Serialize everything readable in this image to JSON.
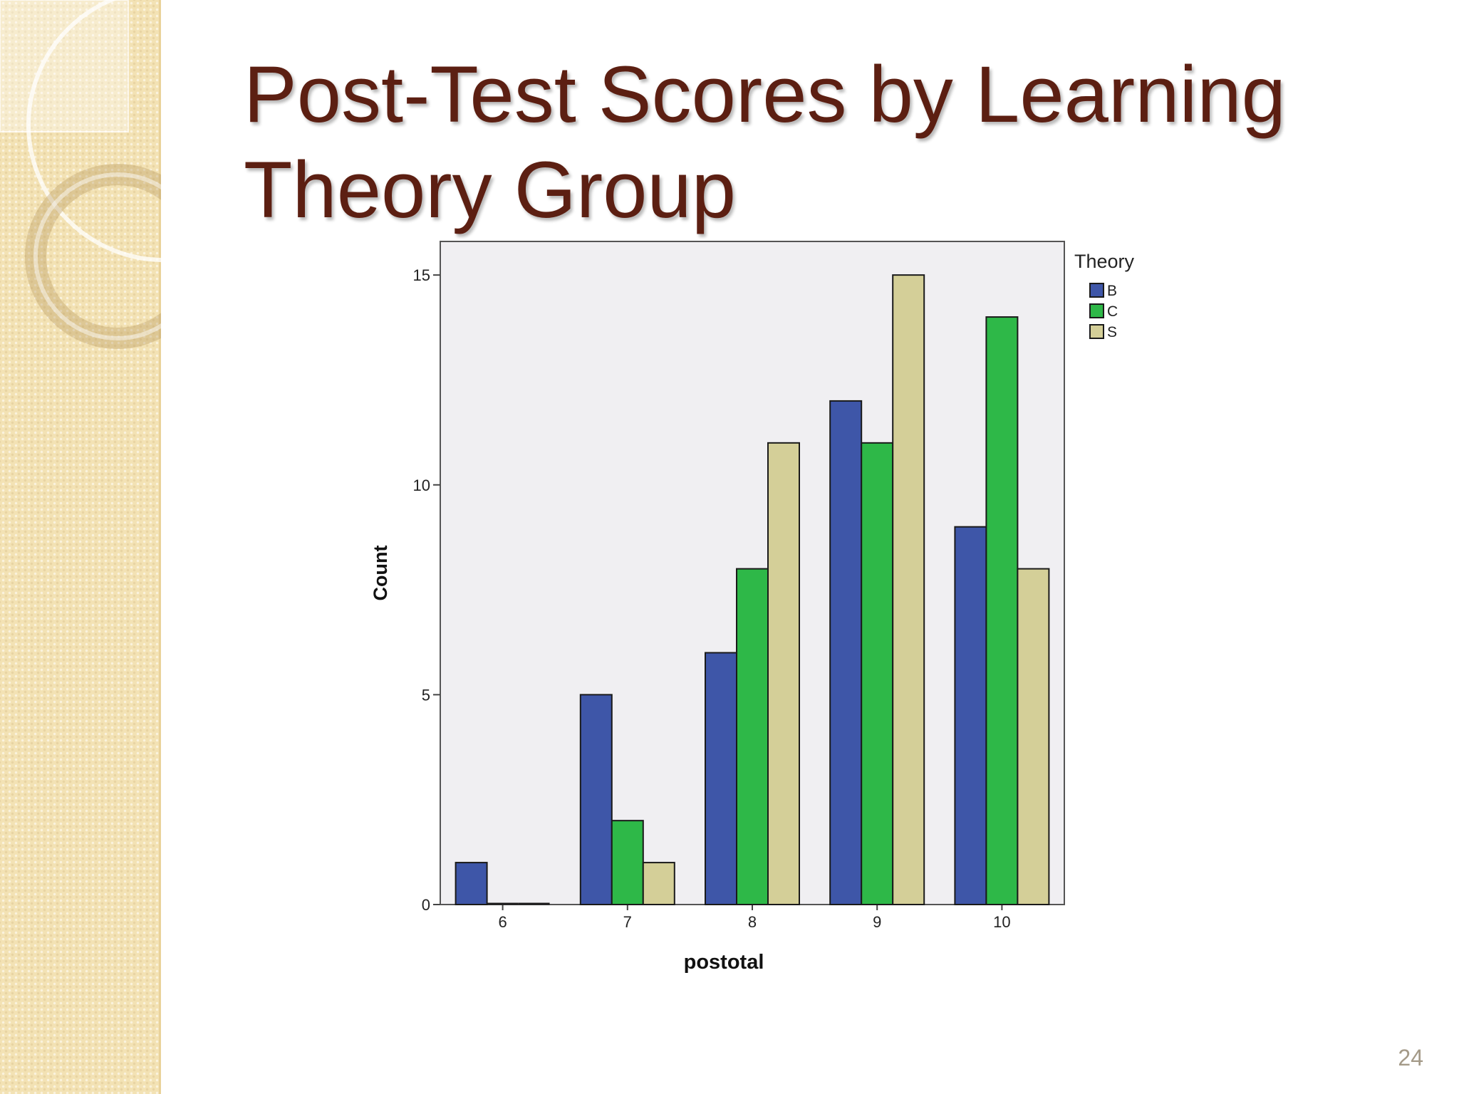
{
  "slide": {
    "title": "Post-Test Scores by Learning Theory Group",
    "page_number": "24"
  },
  "colors": {
    "title": "#5c1f12",
    "sidebar": "#f3e2b4",
    "plot_background": "#f0eff2"
  },
  "chart_data": {
    "type": "bar",
    "title": "",
    "xlabel": "postotal",
    "ylabel": "Count",
    "categories": [
      "6",
      "7",
      "8",
      "9",
      "10"
    ],
    "ylim": [
      0,
      15.8
    ],
    "yticks": [
      0,
      5,
      10,
      15
    ],
    "legend_title": "Theory",
    "legend_position": "right",
    "grid": false,
    "series": [
      {
        "name": "B",
        "color": "#3e56a8",
        "values": [
          1,
          5,
          6,
          12,
          9
        ]
      },
      {
        "name": "C",
        "color": "#2eb848",
        "values": [
          0,
          2,
          8,
          11,
          14
        ]
      },
      {
        "name": "S",
        "color": "#d4cf98",
        "values": [
          0,
          1,
          11,
          15,
          8
        ]
      }
    ]
  }
}
